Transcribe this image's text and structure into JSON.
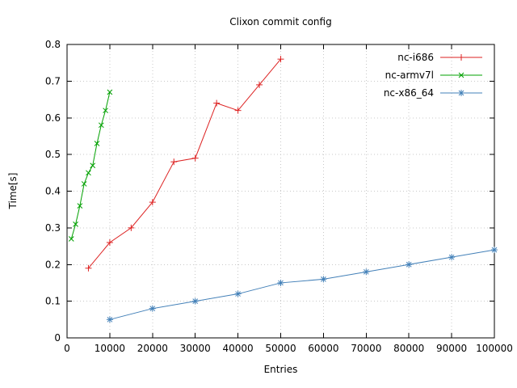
{
  "chart_data": {
    "type": "line",
    "title": "Clixon commit config",
    "xlabel": "Entries",
    "ylabel": "Time[s]",
    "xlim": [
      0,
      100000
    ],
    "ylim": [
      0,
      0.8
    ],
    "grid": true,
    "legend_position": "top-right",
    "xtick_values": [
      0,
      10000,
      20000,
      30000,
      40000,
      50000,
      60000,
      70000,
      80000,
      90000,
      100000
    ],
    "xtick_labels": [
      "0",
      "10000",
      "20000",
      "30000",
      "40000",
      "50000",
      "60000",
      "70000",
      "80000",
      "90000",
      "100000"
    ],
    "ytick_values": [
      0,
      0.1,
      0.2,
      0.3,
      0.4,
      0.5,
      0.6,
      0.7,
      0.8
    ],
    "ytick_labels": [
      "0",
      "0.1",
      "0.2",
      "0.3",
      "0.4",
      "0.5",
      "0.6",
      "0.7",
      "0.8"
    ],
    "series": [
      {
        "name": "nc-i686",
        "color": "#dd2222",
        "marker": "plus",
        "x": [
          5000,
          10000,
          15000,
          20000,
          25000,
          30000,
          35000,
          40000,
          45000,
          50000
        ],
        "y": [
          0.19,
          0.26,
          0.3,
          0.37,
          0.48,
          0.49,
          0.64,
          0.62,
          0.69,
          0.76
        ]
      },
      {
        "name": "nc-armv7l",
        "color": "#00a000",
        "marker": "x",
        "x": [
          1000,
          2000,
          3000,
          4000,
          5000,
          6000,
          7000,
          8000,
          9000,
          10000
        ],
        "y": [
          0.27,
          0.31,
          0.36,
          0.42,
          0.45,
          0.47,
          0.53,
          0.58,
          0.62,
          0.67
        ]
      },
      {
        "name": "nc-x86_64",
        "color": "#4380b8",
        "marker": "star",
        "x": [
          10000,
          20000,
          30000,
          40000,
          50000,
          60000,
          70000,
          80000,
          90000,
          100000
        ],
        "y": [
          0.05,
          0.08,
          0.1,
          0.12,
          0.15,
          0.16,
          0.18,
          0.2,
          0.22,
          0.24
        ]
      }
    ],
    "colors": {
      "background": "#ffffff",
      "text": "#000000",
      "grid": "#c8c8c8",
      "border": "#000000"
    }
  }
}
